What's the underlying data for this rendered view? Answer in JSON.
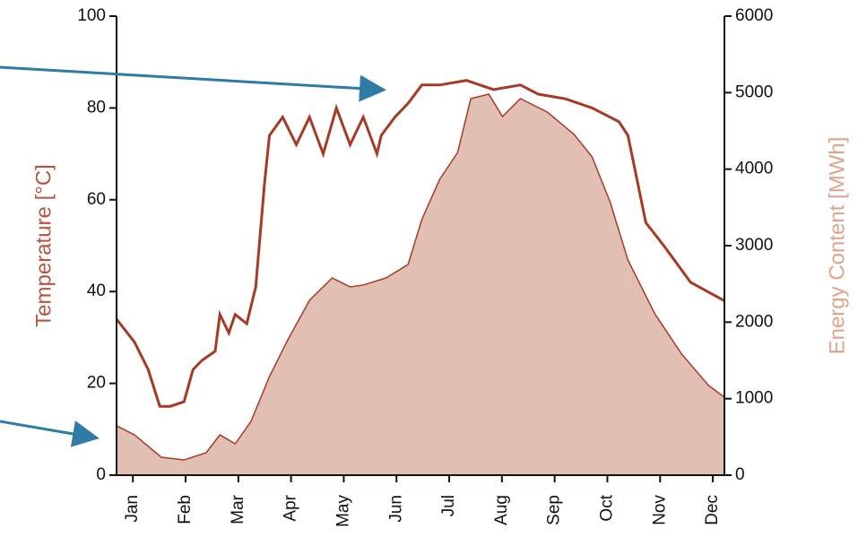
{
  "chart_data": {
    "type": "line",
    "ylabel": "Temperature [°C]",
    "y2label": "Energy Content [MWh]",
    "xlim": [
      -0.31,
      11.22
    ],
    "xticks": [
      {
        "value": 0,
        "label": "Jan"
      },
      {
        "value": 1,
        "label": "Feb"
      },
      {
        "value": 2,
        "label": "Mar"
      },
      {
        "value": 3,
        "label": "Apr"
      },
      {
        "value": 4,
        "label": "May"
      },
      {
        "value": 5,
        "label": "Jun"
      },
      {
        "value": 6,
        "label": "Jul"
      },
      {
        "value": 7,
        "label": "Aug"
      },
      {
        "value": 8,
        "label": "Sep"
      },
      {
        "value": 9,
        "label": "Oct"
      },
      {
        "value": 10,
        "label": "Nov"
      },
      {
        "value": 11,
        "label": "Dec"
      }
    ],
    "ylim": [
      0,
      100
    ],
    "yticks": [
      0,
      20,
      40,
      60,
      80,
      100
    ],
    "y2lim": [
      0,
      6000
    ],
    "y2ticks": [
      0,
      1000,
      2000,
      3000,
      4000,
      5000,
      6000
    ],
    "series": [
      {
        "type": "area",
        "axis": "y2",
        "color": "#e2bfb3",
        "x": [
          -0.31,
          0.03,
          0.54,
          0.97,
          1.39,
          1.65,
          1.94,
          2.24,
          2.59,
          2.93,
          3.35,
          3.78,
          4.12,
          4.37,
          4.8,
          5.22,
          5.48,
          5.82,
          6.16,
          6.41,
          6.75,
          7.01,
          7.35,
          7.86,
          8.37,
          8.71,
          9.05,
          9.39,
          9.9,
          10.41,
          10.92,
          11.22
        ],
        "values": [
          645,
          527,
          234,
          200,
          293,
          527,
          410,
          703,
          1289,
          1758,
          2285,
          2578,
          2461,
          2485,
          2578,
          2754,
          3340,
          3867,
          4219,
          4922,
          4980,
          4688,
          4922,
          4746,
          4453,
          4160,
          3574,
          2813,
          2110,
          1582,
          1172,
          1020
        ]
      },
      {
        "type": "line",
        "color": "#a63a25",
        "x": [
          -0.31,
          0.03,
          0.29,
          0.51,
          0.71,
          0.97,
          1.14,
          1.31,
          1.56,
          1.65,
          1.82,
          1.94,
          2.16,
          2.33,
          2.5,
          2.59,
          2.84,
          3.1,
          3.35,
          3.61,
          3.86,
          4.12,
          4.37,
          4.63,
          4.71,
          4.97,
          5.22,
          5.48,
          5.82,
          6.33,
          6.84,
          7.35,
          7.69,
          8.2,
          8.71,
          9.22,
          9.39,
          9.73,
          10.07,
          10.58,
          11.22
        ],
        "values": [
          34,
          29,
          23,
          15,
          15,
          16,
          23,
          25,
          27,
          35,
          31,
          35,
          33,
          41,
          64,
          74,
          78,
          72,
          78,
          70,
          80,
          72,
          78,
          70,
          74,
          78,
          81,
          85,
          85,
          86,
          84,
          85,
          83,
          82,
          80,
          77,
          74,
          55,
          50,
          42,
          38
        ]
      }
    ]
  }
}
